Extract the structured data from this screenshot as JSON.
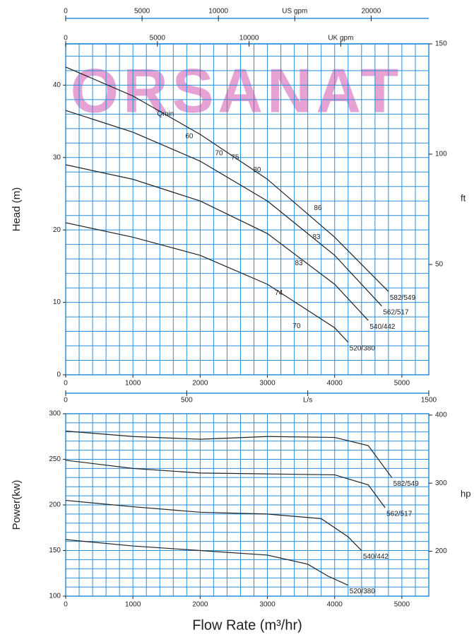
{
  "watermark": "ORSANAT",
  "chart_data": [
    {
      "type": "line",
      "ylabel": "Head (m)",
      "y2label": "ft",
      "xlim": [
        0,
        5400
      ],
      "xticks": [
        0,
        1000,
        2000,
        3000,
        4000,
        5000
      ],
      "ylim": [
        0,
        45.7
      ],
      "yticks": [
        0,
        10,
        20,
        30,
        40
      ],
      "y2lim": [
        0,
        150
      ],
      "y2ticks": [
        50,
        100,
        150
      ],
      "grid": true,
      "xgrid": [
        0,
        200,
        400,
        600,
        800,
        1000,
        1200,
        1400,
        1600,
        1800,
        2000,
        2200,
        2400,
        2600,
        2800,
        3000,
        3200,
        3400,
        3600,
        3800,
        4000,
        4200,
        4400,
        4600,
        4800,
        5000,
        5200
      ],
      "ygrid": [
        0,
        2,
        4,
        6,
        8,
        10,
        12,
        14,
        16,
        18,
        20,
        22,
        24,
        26,
        28,
        30,
        32,
        34,
        36,
        38,
        40,
        42,
        44
      ],
      "top_axes": [
        {
          "lim": [
            0,
            23775
          ],
          "ticks": [
            0,
            5000,
            10000,
            {
              "value": 15000,
              "label": "US gpm"
            },
            20000
          ]
        },
        {
          "lim": [
            0,
            19800
          ],
          "ticks": [
            0,
            5000,
            10000,
            {
              "value": 15000,
              "label": "UK gpm"
            }
          ]
        }
      ],
      "series": [
        {
          "name": "582/549",
          "color": "#222222",
          "x": [
            0,
            1000,
            2000,
            3000,
            4000,
            4800
          ],
          "values": [
            42.5,
            38.5,
            33.2,
            27,
            19,
            11.5
          ]
        },
        {
          "name": "562/517",
          "color": "#222222",
          "x": [
            0,
            1000,
            2000,
            3000,
            4000,
            4700
          ],
          "values": [
            36.5,
            33.5,
            29.5,
            24,
            16.5,
            9.5
          ]
        },
        {
          "name": "540/442",
          "color": "#222222",
          "x": [
            0,
            1000,
            2000,
            3000,
            4000,
            4500
          ],
          "values": [
            29,
            27,
            24,
            19.5,
            12.5,
            7.5
          ]
        },
        {
          "name": "520/380",
          "color": "#222222",
          "x": [
            0,
            1000,
            2000,
            3000,
            4000,
            4200
          ],
          "values": [
            21,
            19,
            16.5,
            12.5,
            6.5,
            4.5
          ]
        }
      ],
      "annotations": [
        {
          "text": "Qmin",
          "x": 1485,
          "y": 36
        },
        {
          "text": "60",
          "x": 1838,
          "y": 32.9
        },
        {
          "text": "70",
          "x": 2280,
          "y": 30.6
        },
        {
          "text": "75",
          "x": 2520,
          "y": 30
        },
        {
          "text": "80",
          "x": 2846,
          "y": 28.3
        },
        {
          "text": "86",
          "x": 3750,
          "y": 23
        },
        {
          "text": "83",
          "x": 3730,
          "y": 19
        },
        {
          "text": "83",
          "x": 3467,
          "y": 15.4
        },
        {
          "text": "74",
          "x": 3170,
          "y": 11.3
        },
        {
          "text": "70",
          "x": 3435,
          "y": 6.7
        }
      ]
    },
    {
      "type": "line",
      "ylabel": "Power(kw)",
      "y2label": "hp",
      "xlabel": "Flow Rate (m³/hr)",
      "xlim": [
        0,
        5400
      ],
      "xticks": [
        0,
        1000,
        2000,
        3000,
        4000,
        5000
      ],
      "ylim": [
        100,
        300
      ],
      "yticks": [
        100,
        150,
        200,
        250,
        300
      ],
      "y2lim": [
        134,
        402
      ],
      "y2ticks": [
        200,
        300,
        400
      ],
      "grid": true,
      "xgrid": [
        0,
        200,
        400,
        600,
        800,
        1000,
        1200,
        1400,
        1600,
        1800,
        2000,
        2200,
        2400,
        2600,
        2800,
        3000,
        3200,
        3400,
        3600,
        3800,
        4000,
        4200,
        4400,
        4600,
        4800,
        5000,
        5200
      ],
      "ygrid": [
        100,
        110,
        120,
        130,
        140,
        150,
        160,
        170,
        180,
        190,
        200,
        210,
        220,
        230,
        240,
        250,
        260,
        270,
        280,
        290,
        300
      ],
      "top_axes": [
        {
          "lim": [
            0,
            1500
          ],
          "ticks": [
            0,
            500,
            {
              "value": 1000,
              "label": "L/s"
            },
            1500
          ]
        }
      ],
      "series": [
        {
          "name": "582/549",
          "color": "#222222",
          "x": [
            0,
            1000,
            2000,
            3000,
            4000,
            4500,
            4850
          ],
          "values": [
            281,
            275,
            272,
            275,
            274,
            265,
            230
          ]
        },
        {
          "name": "562/517",
          "color": "#222222",
          "x": [
            0,
            1000,
            2000,
            3000,
            4000,
            4500,
            4750
          ],
          "values": [
            249,
            240,
            235,
            234,
            233,
            222,
            197
          ]
        },
        {
          "name": "540/442",
          "color": "#222222",
          "x": [
            0,
            1000,
            2000,
            3000,
            3800,
            4200,
            4400
          ],
          "values": [
            205,
            198,
            192,
            190,
            185,
            165,
            150
          ]
        },
        {
          "name": "520/380",
          "color": "#222222",
          "x": [
            0,
            1000,
            2000,
            3000,
            3600,
            3900,
            4200
          ],
          "values": [
            162,
            155,
            150,
            145,
            135,
            122,
            112
          ]
        }
      ]
    }
  ]
}
